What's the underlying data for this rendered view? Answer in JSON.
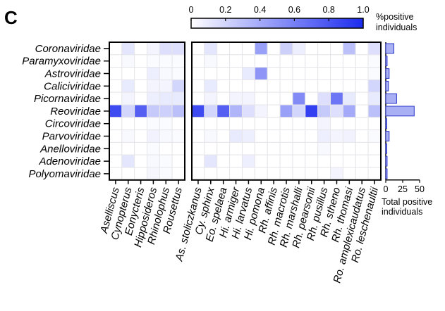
{
  "panel_label": "C",
  "chart_data": {
    "type": "heatmap",
    "rows": [
      "Coronaviridae",
      "Paramyxoviridae",
      "Astroviridae",
      "Caliciviridae",
      "Picornaviridae",
      "Reoviridae",
      "Circoviridae",
      "Parvoviridae",
      "Anelloviridae",
      "Adenoviridae",
      "Polyomaviridae"
    ],
    "genera": [
      "Aselliscus",
      "Cynopterus",
      "Eonycteris",
      "Hipposideros",
      "Rhinolophus",
      "Rousettus"
    ],
    "species": [
      "As. stoliczkanus",
      "Cy. sphinx",
      "Eo. spelaea",
      "Hi. armiger",
      "Hi. larvatus",
      "Hi. pomona",
      "Rh. affinis",
      "Rh. macrotis",
      "Rh. marshalli",
      "Rh. pearsonii",
      "Rh. pusillus",
      "Rh. stheno",
      "Rh. thomasi",
      "Ro. amplexicaudatus",
      "Ro. leschenaultii"
    ],
    "genus_values": [
      [
        0,
        0.12,
        0,
        0.05,
        0.15,
        0.15
      ],
      [
        0,
        0.03,
        0,
        0.02,
        0.02,
        0.02
      ],
      [
        0,
        0,
        0,
        0.08,
        0.03,
        0.02
      ],
      [
        0,
        0.1,
        0,
        0.05,
        0.05,
        0.2
      ],
      [
        0,
        0.05,
        0,
        0.08,
        0.1,
        0.1
      ],
      [
        0.85,
        0.2,
        0.75,
        0.25,
        0.22,
        0.3
      ],
      [
        0,
        0,
        0,
        0.02,
        0.02,
        0
      ],
      [
        0,
        0.03,
        0,
        0.06,
        0.03,
        0.02
      ],
      [
        0,
        0,
        0,
        0.02,
        0,
        0
      ],
      [
        0,
        0.12,
        0,
        0.03,
        0.02,
        0
      ],
      [
        0,
        0,
        0,
        0.04,
        0.02,
        0
      ]
    ],
    "species_values": [
      [
        0,
        0.12,
        0,
        0,
        0,
        0.45,
        0,
        0.22,
        0.08,
        0,
        0,
        0,
        0.3,
        0,
        0.15
      ],
      [
        0,
        0.03,
        0,
        0,
        0,
        0,
        0,
        0,
        0,
        0,
        0,
        0,
        0,
        0,
        0.02
      ],
      [
        0,
        0,
        0,
        0,
        0.1,
        0.5,
        0,
        0,
        0,
        0,
        0,
        0,
        0,
        0,
        0.02
      ],
      [
        0,
        0.1,
        0,
        0,
        0,
        0,
        0,
        0,
        0,
        0,
        0,
        0,
        0,
        0,
        0.2
      ],
      [
        0,
        0.05,
        0,
        0.05,
        0.05,
        0,
        0,
        0,
        0.55,
        0,
        0.15,
        0.65,
        0.1,
        0,
        0.1
      ],
      [
        0.85,
        0.2,
        0.75,
        0.35,
        0.15,
        0.05,
        0,
        0.45,
        0.2,
        0.9,
        0.25,
        0.15,
        0.4,
        0,
        0.3
      ],
      [
        0,
        0,
        0,
        0,
        0,
        0,
        0,
        0,
        0,
        0,
        0.05,
        0,
        0,
        0,
        0
      ],
      [
        0,
        0.03,
        0,
        0.1,
        0.08,
        0,
        0,
        0,
        0,
        0,
        0.08,
        0.05,
        0.06,
        0,
        0.02
      ],
      [
        0,
        0,
        0,
        0,
        0,
        0,
        0,
        0,
        0,
        0,
        0.03,
        0,
        0,
        0,
        0
      ],
      [
        0,
        0.12,
        0,
        0,
        0.08,
        0,
        0,
        0,
        0,
        0,
        0,
        0,
        0,
        0,
        0
      ],
      [
        0,
        0,
        0,
        0,
        0,
        0,
        0,
        0,
        0,
        0,
        0,
        0.05,
        0,
        0,
        0
      ]
    ],
    "totals": [
      12,
      2,
      5,
      4,
      16,
      42,
      1,
      5,
      1,
      2,
      2
    ],
    "colorbar": {
      "label": "%positive individuals",
      "ticks": [
        "0",
        "0.2",
        "0.4",
        "0.6",
        "0.8",
        "1.0"
      ],
      "range": [
        0,
        1
      ],
      "color_low": "#ffffff",
      "color_high": "#1c2bef"
    },
    "bar_axis": {
      "ticks": [
        "0",
        "25",
        "50"
      ],
      "range": [
        0,
        50
      ],
      "label": "Total positive individuals"
    }
  }
}
